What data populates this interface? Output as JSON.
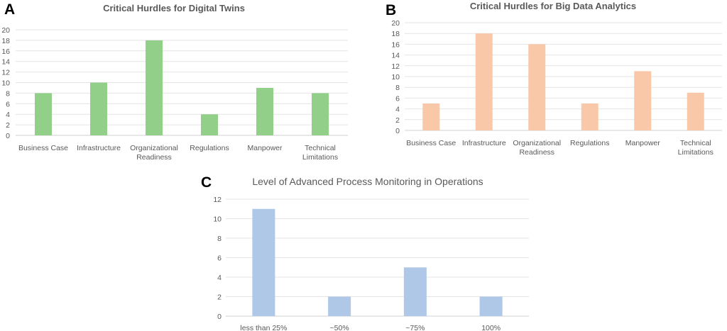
{
  "panels": {
    "a": {
      "letter": "A"
    },
    "b": {
      "letter": "B"
    },
    "c": {
      "letter": "C"
    }
  },
  "chart_data": [
    {
      "id": "a",
      "type": "bar",
      "title": "Critical Hurdles for Digital Twins",
      "categories": [
        "Business Case",
        "Infrastructure",
        "Organizational Readiness",
        "Regulations",
        "Manpower",
        "Technical Limitations"
      ],
      "category_lines": [
        [
          "Business Case"
        ],
        [
          "Infrastructure"
        ],
        [
          "Organizational",
          "Readiness"
        ],
        [
          "Regulations"
        ],
        [
          "Manpower"
        ],
        [
          "Technical",
          "Limitations"
        ]
      ],
      "values": [
        8,
        10,
        18,
        4,
        9,
        8
      ],
      "ylim": [
        0,
        20
      ],
      "ytick_step": 2,
      "grid": true,
      "color": "#92D08A"
    },
    {
      "id": "b",
      "type": "bar",
      "title": "Critical Hurdles for Big Data Analytics",
      "categories": [
        "Business Case",
        "Infrastructure",
        "Organizational Readiness",
        "Regulations",
        "Manpower",
        "Technical Limitations"
      ],
      "category_lines": [
        [
          "Business Case"
        ],
        [
          "Infrastructure"
        ],
        [
          "Organizational",
          "Readiness"
        ],
        [
          "Regulations"
        ],
        [
          "Manpower"
        ],
        [
          "Technical",
          "Limitations"
        ]
      ],
      "values": [
        5,
        18,
        16,
        5,
        11,
        7
      ],
      "ylim": [
        0,
        20
      ],
      "ytick_step": 2,
      "grid": true,
      "color": "#F8C8A8"
    },
    {
      "id": "c",
      "type": "bar",
      "title": "Level of Advanced Process Monitoring in Operations",
      "categories": [
        "less than 25%",
        "~50%",
        "~75%",
        "100%"
      ],
      "category_lines": [
        [
          "less than 25%"
        ],
        [
          "~50%"
        ],
        [
          "~75%"
        ],
        [
          "100%"
        ]
      ],
      "values": [
        11,
        2,
        5,
        2
      ],
      "ylim": [
        0,
        12
      ],
      "ytick_step": 2,
      "grid": true,
      "color": "#AFC8E8"
    }
  ]
}
